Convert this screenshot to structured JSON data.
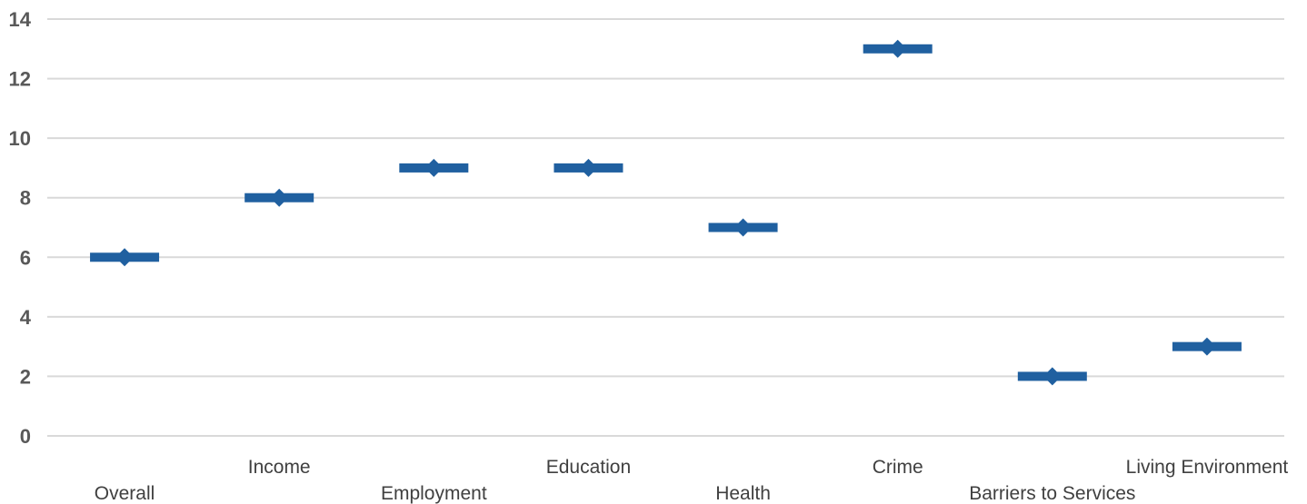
{
  "chart_data": {
    "type": "scatter",
    "categories": [
      "Overall",
      "Income",
      "Employment",
      "Education",
      "Health",
      "Crime",
      "Barriers to Services",
      "Living Environment"
    ],
    "values": [
      6,
      8,
      9,
      9,
      7,
      13,
      2,
      3
    ],
    "ylim": [
      0,
      14
    ],
    "yticks": [
      "0",
      "2",
      "4",
      "6",
      "8",
      "10",
      "12",
      "14"
    ],
    "grid": true,
    "colors": {
      "marker": "#2060a0",
      "grid": "#d9d9d9",
      "axis": "#d9d9d9"
    }
  }
}
